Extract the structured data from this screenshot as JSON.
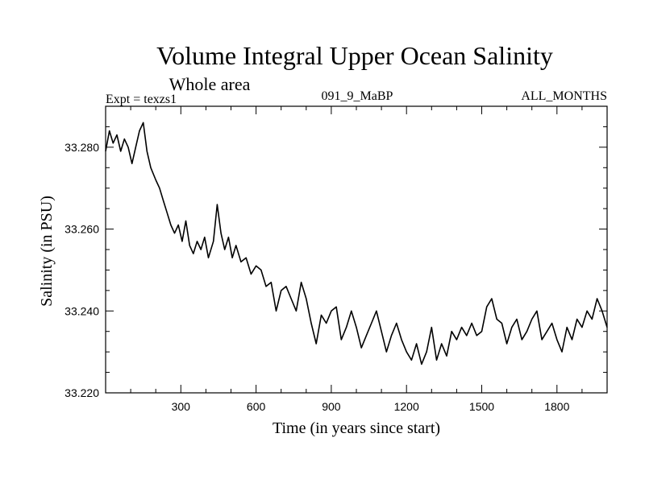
{
  "chart_data": {
    "type": "line",
    "title": "Volume Integral Upper Ocean Salinity",
    "subtitle": "Whole area",
    "experiment": "Expt = texzs1",
    "run_id": "091_9_MaBP",
    "months": "ALL_MONTHS",
    "xlabel": "Time (in years since start)",
    "ylabel": "Salinity (in PSU)",
    "xlim": [
      0,
      2000
    ],
    "ylim": [
      33.22,
      33.29
    ],
    "xticks": [
      300,
      600,
      900,
      1200,
      1500,
      1800
    ],
    "xtick_labels": [
      "300",
      "600",
      "900",
      "1200",
      "1500",
      "1800"
    ],
    "yticks": [
      33.22,
      33.24,
      33.26,
      33.28
    ],
    "ytick_labels": [
      "33.220",
      "33.240",
      "33.260",
      "33.280"
    ],
    "grid": false,
    "series": [
      {
        "name": "Salinity",
        "x": [
          0,
          15,
          30,
          45,
          60,
          75,
          90,
          105,
          120,
          135,
          150,
          165,
          180,
          200,
          215,
          230,
          245,
          260,
          275,
          290,
          305,
          320,
          335,
          350,
          365,
          380,
          395,
          410,
          430,
          445,
          460,
          475,
          490,
          505,
          520,
          540,
          560,
          580,
          600,
          620,
          640,
          660,
          680,
          700,
          720,
          740,
          760,
          780,
          800,
          820,
          840,
          860,
          880,
          900,
          920,
          940,
          960,
          980,
          1000,
          1020,
          1040,
          1060,
          1080,
          1100,
          1120,
          1140,
          1160,
          1180,
          1200,
          1220,
          1240,
          1260,
          1280,
          1300,
          1320,
          1340,
          1360,
          1380,
          1400,
          1420,
          1440,
          1460,
          1480,
          1500,
          1520,
          1540,
          1560,
          1580,
          1600,
          1620,
          1640,
          1660,
          1680,
          1700,
          1720,
          1740,
          1760,
          1780,
          1800,
          1820,
          1840,
          1860,
          1880,
          1900,
          1920,
          1940,
          1960,
          1980,
          2000
        ],
        "values": [
          33.279,
          33.284,
          33.281,
          33.283,
          33.279,
          33.282,
          33.28,
          33.276,
          33.28,
          33.284,
          33.286,
          33.279,
          33.275,
          33.272,
          33.27,
          33.267,
          33.264,
          33.261,
          33.259,
          33.261,
          33.257,
          33.262,
          33.256,
          33.254,
          33.257,
          33.255,
          33.258,
          33.253,
          33.257,
          33.266,
          33.259,
          33.255,
          33.258,
          33.253,
          33.256,
          33.252,
          33.253,
          33.249,
          33.251,
          33.25,
          33.246,
          33.247,
          33.24,
          33.245,
          33.246,
          33.243,
          33.24,
          33.247,
          33.243,
          33.237,
          33.232,
          33.239,
          33.237,
          33.24,
          33.241,
          33.233,
          33.236,
          33.24,
          33.236,
          33.231,
          33.234,
          33.237,
          33.24,
          33.235,
          33.23,
          33.234,
          33.237,
          33.233,
          33.23,
          33.228,
          33.232,
          33.227,
          33.23,
          33.236,
          33.228,
          33.232,
          33.229,
          33.235,
          33.233,
          33.236,
          33.234,
          33.237,
          33.234,
          33.235,
          33.241,
          33.243,
          33.238,
          33.237,
          33.232,
          33.236,
          33.238,
          33.233,
          33.235,
          33.238,
          33.24,
          33.233,
          33.235,
          33.237,
          33.233,
          33.23,
          33.236,
          33.233,
          33.238,
          33.236,
          33.24,
          33.238,
          33.243,
          33.24,
          33.236
        ]
      }
    ]
  }
}
